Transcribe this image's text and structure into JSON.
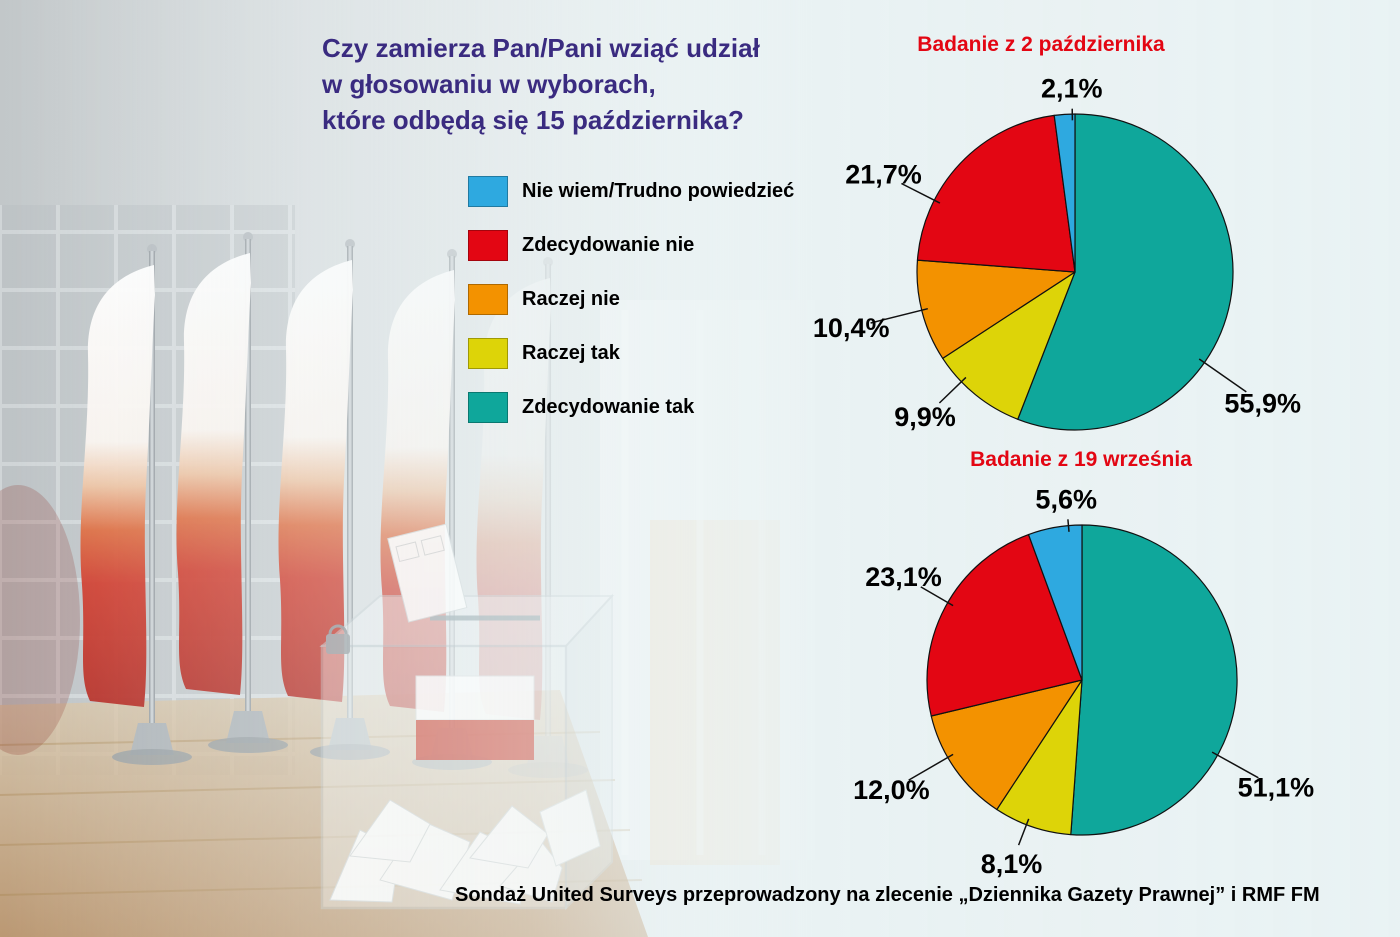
{
  "question": {
    "line1": "Czy zamierza Pan/Pani wziąć udział",
    "line2": "w głosowaniu w wyborach,",
    "line3": "które odbędą się 15 października?"
  },
  "legend": {
    "items": [
      {
        "label": "Nie wiem/Trudno powiedzieć",
        "color": "#2ea9e0"
      },
      {
        "label": "Zdecydowanie nie",
        "color": "#e30613"
      },
      {
        "label": "Raczej nie",
        "color": "#f39200"
      },
      {
        "label": "Raczej tak",
        "color": "#ddd408"
      },
      {
        "label": "Zdecydowanie tak",
        "color": "#0fa79b"
      }
    ]
  },
  "footer": {
    "source": "Sondaż United Surveys przeprowadzony na zlecenie „Dziennika Gazety Prawnej” i RMF FM"
  },
  "colors": {
    "question_text": "#3a2b80",
    "chart_title_text": "#e30613",
    "percent_label_text": "#000000"
  },
  "chart_data": [
    {
      "type": "pie",
      "title": "Badanie z 2 października",
      "unit": "%",
      "start_angle": 0,
      "legend_position": "left",
      "slices": [
        {
          "category": "Zdecydowanie tak",
          "value": 55.9,
          "label": "55,9%",
          "color": "#0fa79b",
          "label_angle": 125,
          "label_r": 1.45
        },
        {
          "category": "Raczej tak",
          "value": 9.9,
          "label": "9,9%",
          "color": "#ddd408",
          "label_angle": 226,
          "label_r": 1.32
        },
        {
          "category": "Raczej nie",
          "value": 10.4,
          "label": "10,4%",
          "color": "#f39200",
          "label_angle": 256,
          "label_r": 1.46
        },
        {
          "category": "Zdecydowanie nie",
          "value": 21.7,
          "label": "21,7%",
          "color": "#e30613",
          "label_angle": 297,
          "label_r": 1.36
        },
        {
          "category": "Nie wiem/Trudno powiedzieć",
          "value": 2.1,
          "label": "2,1%",
          "color": "#2ea9e0",
          "label_angle": 359,
          "label_r": 1.16
        }
      ]
    },
    {
      "type": "pie",
      "title": "Badanie z 19 września",
      "unit": "%",
      "start_angle": 0,
      "legend_position": "left",
      "slices": [
        {
          "category": "Zdecydowanie tak",
          "value": 51.1,
          "label": "51,1%",
          "color": "#0fa79b",
          "label_angle": 119,
          "label_r": 1.43
        },
        {
          "category": "Raczej tak",
          "value": 8.1,
          "label": "8,1%",
          "color": "#ddd408",
          "label_angle": 201,
          "label_r": 1.27
        },
        {
          "category": "Raczej nie",
          "value": 12.0,
          "label": "12,0%",
          "color": "#f39200",
          "label_angle": 240,
          "label_r": 1.42
        },
        {
          "category": "Zdecydowanie nie",
          "value": 23.1,
          "label": "23,1%",
          "color": "#e30613",
          "label_angle": 300,
          "label_r": 1.33
        },
        {
          "category": "Nie wiem/Trudno powiedzieć",
          "value": 5.6,
          "label": "5,6%",
          "color": "#2ea9e0",
          "label_angle": 355,
          "label_r": 1.17
        }
      ]
    }
  ]
}
